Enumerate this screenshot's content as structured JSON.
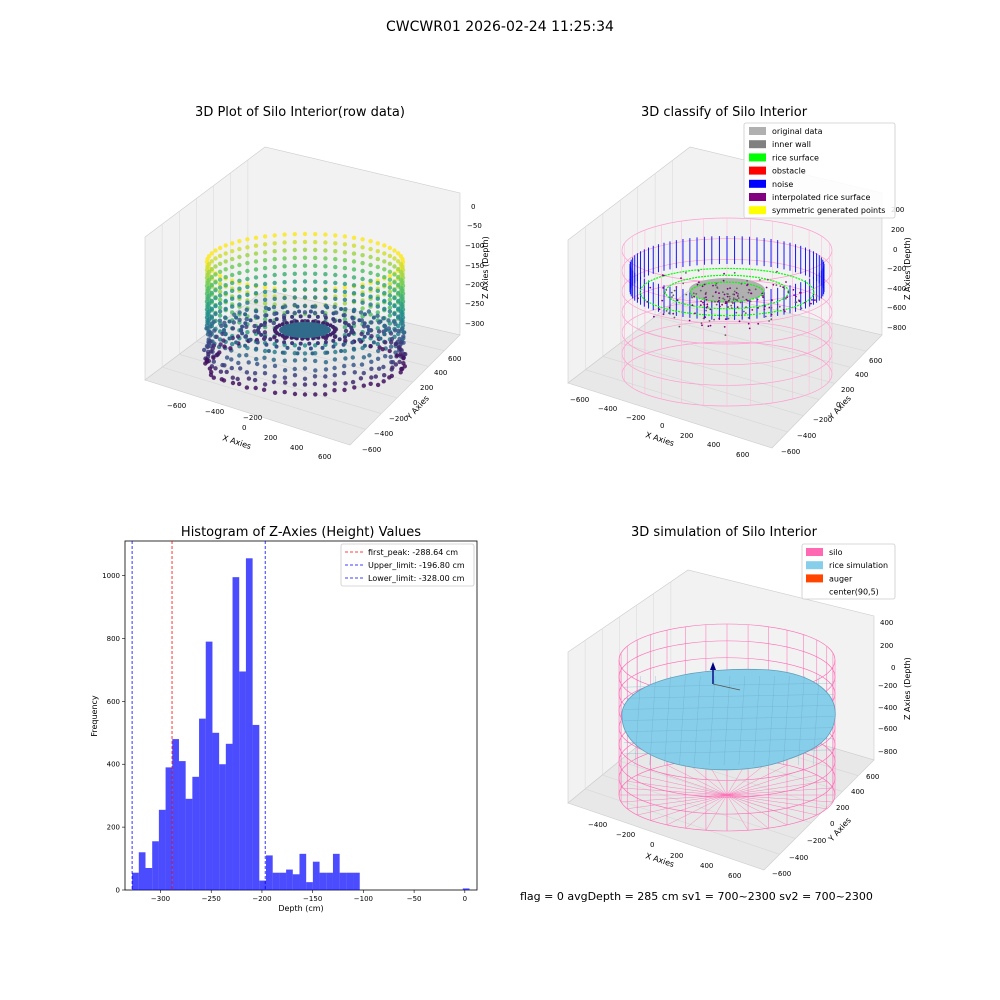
{
  "figure": {
    "suptitle": "CWCWR01 2026-02-24 11:25:34",
    "footer": "flag = 0     avgDepth = 285 cm  sv1 = 700~2300  sv2 = 700~2300"
  },
  "panels": {
    "raw": {
      "title": "3D Plot of Silo Interior(row data)",
      "xlabel": "X Axies",
      "ylabel": "Y Axies",
      "zlabel": "Z Axies (Depth)",
      "xticks": [
        "−600",
        "−400",
        "−200",
        "0",
        "200",
        "400",
        "600"
      ],
      "yticks": [
        "−600",
        "−400",
        "−200",
        "0",
        "200",
        "400",
        "600"
      ],
      "zticks": [
        "0",
        "−50",
        "−100",
        "−150",
        "−200",
        "−250",
        "−300"
      ]
    },
    "classify": {
      "title": "3D classify of Silo Interior",
      "xlabel": "X Axies",
      "ylabel": "Y Axies",
      "zlabel": "Z Axies (Depth)",
      "xticks": [
        "−600",
        "−400",
        "−200",
        "0",
        "200",
        "400",
        "600"
      ],
      "yticks": [
        "−600",
        "−400",
        "−200",
        "0",
        "200",
        "400",
        "600"
      ],
      "zticks": [
        "200",
        "0",
        "−200",
        "−400",
        "−600",
        "−800"
      ],
      "legend": [
        {
          "label": "original data",
          "color": "#b0b0b0"
        },
        {
          "label": "inner wall",
          "color": "#808080"
        },
        {
          "label": "rice surface",
          "color": "#00ff00"
        },
        {
          "label": "obstacle",
          "color": "#ff0000"
        },
        {
          "label": "noise",
          "color": "#0000ff"
        },
        {
          "label": "interpolated rice surface",
          "color": "#800080"
        },
        {
          "label": "symmetric generated points",
          "color": "#ffff00"
        }
      ]
    },
    "simulation": {
      "title": "3D simulation of Silo Interior",
      "xlabel": "X Axies",
      "ylabel": "Y Axies",
      "zlabel": "Z Axies (Depth)",
      "xticks": [
        "−400",
        "−200",
        "0",
        "200",
        "400",
        "600"
      ],
      "yticks": [
        "−600",
        "−400",
        "−200",
        "0",
        "200",
        "400",
        "600"
      ],
      "zticks": [
        "400",
        "200",
        "0",
        "−200",
        "−400",
        "−600",
        "−800"
      ],
      "legend": [
        {
          "label": "silo",
          "color": "#ff69b4"
        },
        {
          "label": "rice simulation",
          "color": "#87ceeb"
        },
        {
          "label": "auger",
          "color": "#ff4500"
        },
        {
          "label": "center(90,5)",
          "color": ""
        }
      ]
    }
  },
  "colors": {
    "bars": "#0000ff",
    "first_peak": "#ff0000",
    "limits": "#0000ff"
  },
  "chart_data": {
    "type": "bar",
    "title": "Histogram of Z-Axies (Height) Values",
    "xlabel": "Depth (cm)",
    "ylabel": "Frequency",
    "xlim": [
      -335,
      12
    ],
    "ylim": [
      0,
      1110
    ],
    "xticks": [
      -300,
      -250,
      -200,
      -150,
      -100,
      -50,
      0
    ],
    "yticks": [
      0,
      200,
      400,
      600,
      800,
      1000
    ],
    "bin_width": 6.6,
    "bins": [
      {
        "x": -328.0,
        "count": 55
      },
      {
        "x": -321.4,
        "count": 120
      },
      {
        "x": -314.8,
        "count": 70
      },
      {
        "x": -308.2,
        "count": 155
      },
      {
        "x": -301.6,
        "count": 255
      },
      {
        "x": -295.0,
        "count": 390
      },
      {
        "x": -288.4,
        "count": 480
      },
      {
        "x": -281.8,
        "count": 410
      },
      {
        "x": -275.2,
        "count": 290
      },
      {
        "x": -268.6,
        "count": 360
      },
      {
        "x": -262.0,
        "count": 545
      },
      {
        "x": -255.4,
        "count": 790
      },
      {
        "x": -248.8,
        "count": 500
      },
      {
        "x": -242.2,
        "count": 400
      },
      {
        "x": -235.6,
        "count": 465
      },
      {
        "x": -229.0,
        "count": 995
      },
      {
        "x": -222.4,
        "count": 695
      },
      {
        "x": -215.8,
        "count": 1055
      },
      {
        "x": -209.2,
        "count": 525
      },
      {
        "x": -202.6,
        "count": 30
      },
      {
        "x": -196.0,
        "count": 110
      },
      {
        "x": -189.4,
        "count": 55
      },
      {
        "x": -182.8,
        "count": 55
      },
      {
        "x": -176.2,
        "count": 65
      },
      {
        "x": -169.6,
        "count": 50
      },
      {
        "x": -163.0,
        "count": 115
      },
      {
        "x": -156.4,
        "count": 25
      },
      {
        "x": -149.8,
        "count": 90
      },
      {
        "x": -143.2,
        "count": 55
      },
      {
        "x": -136.6,
        "count": 55
      },
      {
        "x": -130.0,
        "count": 115
      },
      {
        "x": -123.4,
        "count": 55
      },
      {
        "x": -116.8,
        "count": 55
      },
      {
        "x": -110.2,
        "count": 55
      },
      {
        "x": -2.0,
        "count": 5
      }
    ],
    "vlines": [
      {
        "label": "first_peak: -288.64 cm",
        "x": -288.64,
        "color": "#ff0000"
      },
      {
        "label": "Upper_limit: -196.80 cm",
        "x": -196.8,
        "color": "#0000ff"
      },
      {
        "label": "Lower_limit: -328.00 cm",
        "x": -328.0,
        "color": "#0000ff"
      }
    ],
    "legend_position": "top-right"
  }
}
